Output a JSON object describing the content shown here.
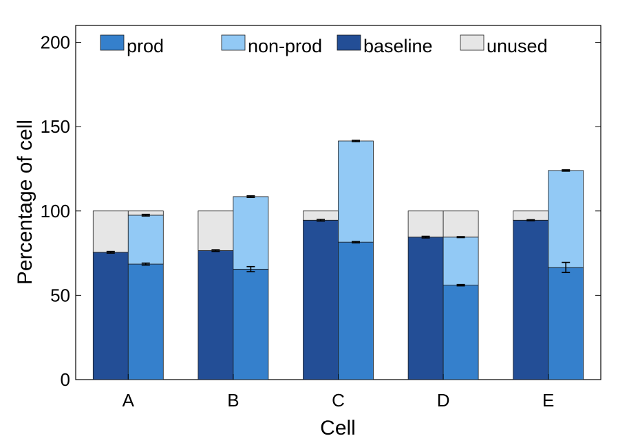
{
  "chart_data": {
    "type": "bar",
    "subtype": "stacked-grouped",
    "title": "",
    "xlabel": "Cell",
    "ylabel": "Percentage of cell",
    "ylim": [
      0,
      210
    ],
    "yticks": [
      0,
      50,
      100,
      150,
      200
    ],
    "categories": [
      "A",
      "B",
      "C",
      "D",
      "E"
    ],
    "grid": false,
    "legend_position": "top",
    "legend": [
      {
        "label": "prod",
        "color": "#3580cc"
      },
      {
        "label": "non-prod",
        "color": "#92c9f5"
      },
      {
        "label": "baseline",
        "color": "#234e96"
      },
      {
        "label": "unused",
        "color": "#e6e6e6"
      }
    ],
    "groups": {
      "left_bar": {
        "series": [
          {
            "name": "baseline",
            "values": [
              75.5,
              76.5,
              94.5,
              84.5,
              94.5
            ]
          },
          {
            "name": "unused",
            "values": [
              24.5,
              23.5,
              5.5,
              15.5,
              5.5
            ]
          }
        ],
        "errors_at_top_of": "baseline",
        "error": [
          0.5,
          0.5,
          0.5,
          0.5,
          0.3
        ]
      },
      "right_bar": {
        "series": [
          {
            "name": "prod",
            "values": [
              68.5,
              65.5,
              81.5,
              56,
              66.5
            ]
          },
          {
            "name": "non-prod",
            "values": [
              29,
              43,
              60,
              28.5,
              57.5
            ]
          },
          {
            "name": "unused",
            "values": [
              2.5,
              0,
              0,
              15.5,
              0
            ]
          }
        ],
        "prod_error": [
          0.6,
          1.5,
          0.4,
          0.4,
          3.0
        ],
        "nonprod_error": [
          0.5,
          0.5,
          0.4,
          0.3,
          0.4
        ]
      }
    },
    "colors": {
      "prod": "#3580cc",
      "non-prod": "#92c9f5",
      "baseline": "#234e96",
      "unused": "#e6e6e6",
      "axis": "#000000"
    }
  }
}
